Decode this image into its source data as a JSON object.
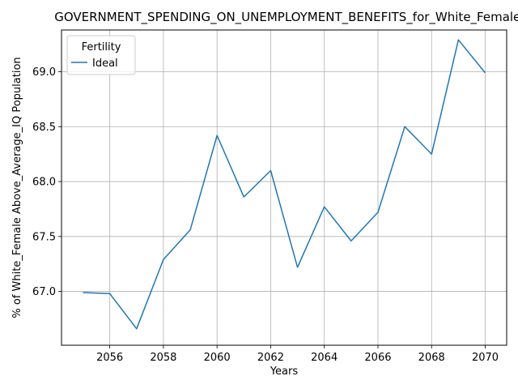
{
  "chart_data": {
    "type": "line",
    "title": "GOVERNMENT_SPENDING_ON_UNEMPLOYMENT_BENEFITS_for_White_Female_",
    "xlabel": "Years",
    "ylabel": "% of White_Female Above_Average_IQ Population",
    "xlim": [
      2054.2,
      2070.8
    ],
    "ylim": [
      66.51,
      69.38
    ],
    "x_ticks": [
      2056,
      2058,
      2060,
      2062,
      2064,
      2066,
      2068,
      2070
    ],
    "y_ticks": [
      67.0,
      67.5,
      68.0,
      68.5,
      69.0
    ],
    "y_tick_labels": [
      "67.0",
      "67.5",
      "68.0",
      "68.5",
      "69.0"
    ],
    "grid": true,
    "legend": {
      "title": "Fertility",
      "placement": "top-left"
    },
    "series": [
      {
        "name": "Ideal",
        "color": "#1f77b4",
        "x": [
          2055,
          2056,
          2057,
          2058,
          2059,
          2060,
          2061,
          2062,
          2063,
          2064,
          2065,
          2066,
          2067,
          2068,
          2069,
          2070
        ],
        "y": [
          66.99,
          66.98,
          66.66,
          67.29,
          67.56,
          68.42,
          67.86,
          68.1,
          67.22,
          67.77,
          67.46,
          67.72,
          68.5,
          68.25,
          69.29,
          68.99
        ]
      }
    ]
  }
}
